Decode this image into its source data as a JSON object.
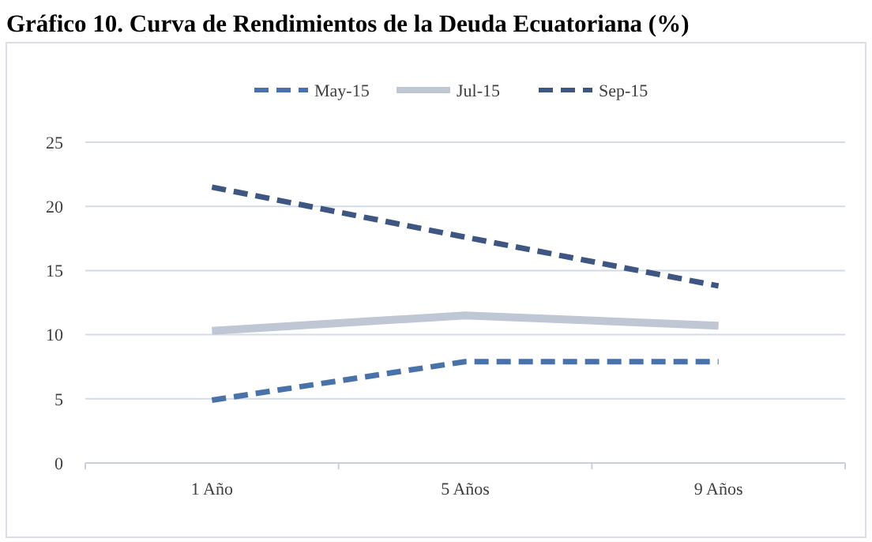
{
  "chart_data": {
    "type": "line",
    "title": "Gráfico 10. Curva de Rendimientos de la Deuda Ecuatoriana (%)",
    "categories": [
      "1 Año",
      "5 Años",
      "9 Años"
    ],
    "series": [
      {
        "name": "May-15",
        "color": "#4a72aa",
        "values": [
          4.9,
          7.9,
          7.9
        ],
        "line_style": "dashed"
      },
      {
        "name": "Jul-15",
        "color": "#bfc7d5",
        "values": [
          10.3,
          11.5,
          10.7
        ],
        "line_style": "solid"
      },
      {
        "name": "Sep-15",
        "color": "#3d5782",
        "values": [
          21.5,
          17.6,
          13.8
        ],
        "line_style": "dashed"
      }
    ],
    "ylim": [
      0,
      25
    ],
    "yticks": [
      0,
      5,
      10,
      15,
      20,
      25
    ],
    "grid": "y",
    "legend": "top",
    "marker": "none"
  }
}
